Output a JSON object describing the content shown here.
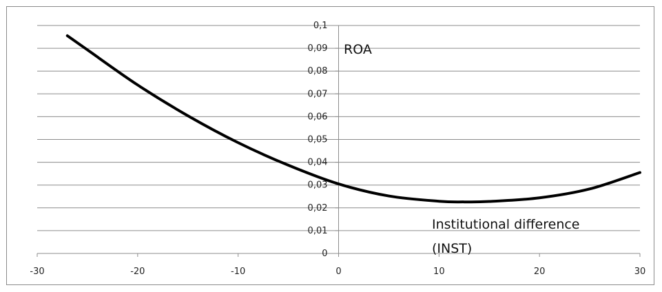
{
  "chart_data": {
    "type": "line",
    "title": "",
    "ylabel": "ROA",
    "xlabel_lines": [
      "Institutional difference",
      "(INST)"
    ],
    "xlim": [
      -30,
      30
    ],
    "ylim": [
      0,
      0.1
    ],
    "x_ticks": [
      -30,
      -20,
      -10,
      0,
      10,
      20,
      30
    ],
    "y_ticks": [
      0,
      0.01,
      0.02,
      0.03,
      0.04,
      0.05,
      0.06,
      0.07,
      0.08,
      0.09,
      0.1
    ],
    "x_tick_labels": [
      "-30",
      "-20",
      "-10",
      "0",
      "10",
      "20",
      "30"
    ],
    "y_tick_labels": [
      "0",
      "0,01",
      "0,02",
      "0,03",
      "0,04",
      "0,05",
      "0,06",
      "0,07",
      "0,08",
      "0,09",
      "0,1"
    ],
    "grid": "horizontal",
    "legend": "none",
    "line_color": "#000000",
    "grid_color": "#8c8c8c",
    "series": [
      {
        "x": [
          -27,
          -25,
          -20,
          -15,
          -10,
          -5,
          0,
          5,
          10,
          12.5,
          15,
          20,
          25,
          30
        ],
        "y": [
          0.0955,
          0.0893,
          0.0739,
          0.0604,
          0.0486,
          0.0387,
          0.0305,
          0.0252,
          0.0229,
          0.0226,
          0.0228,
          0.0244,
          0.0283,
          0.0355
        ]
      }
    ]
  }
}
